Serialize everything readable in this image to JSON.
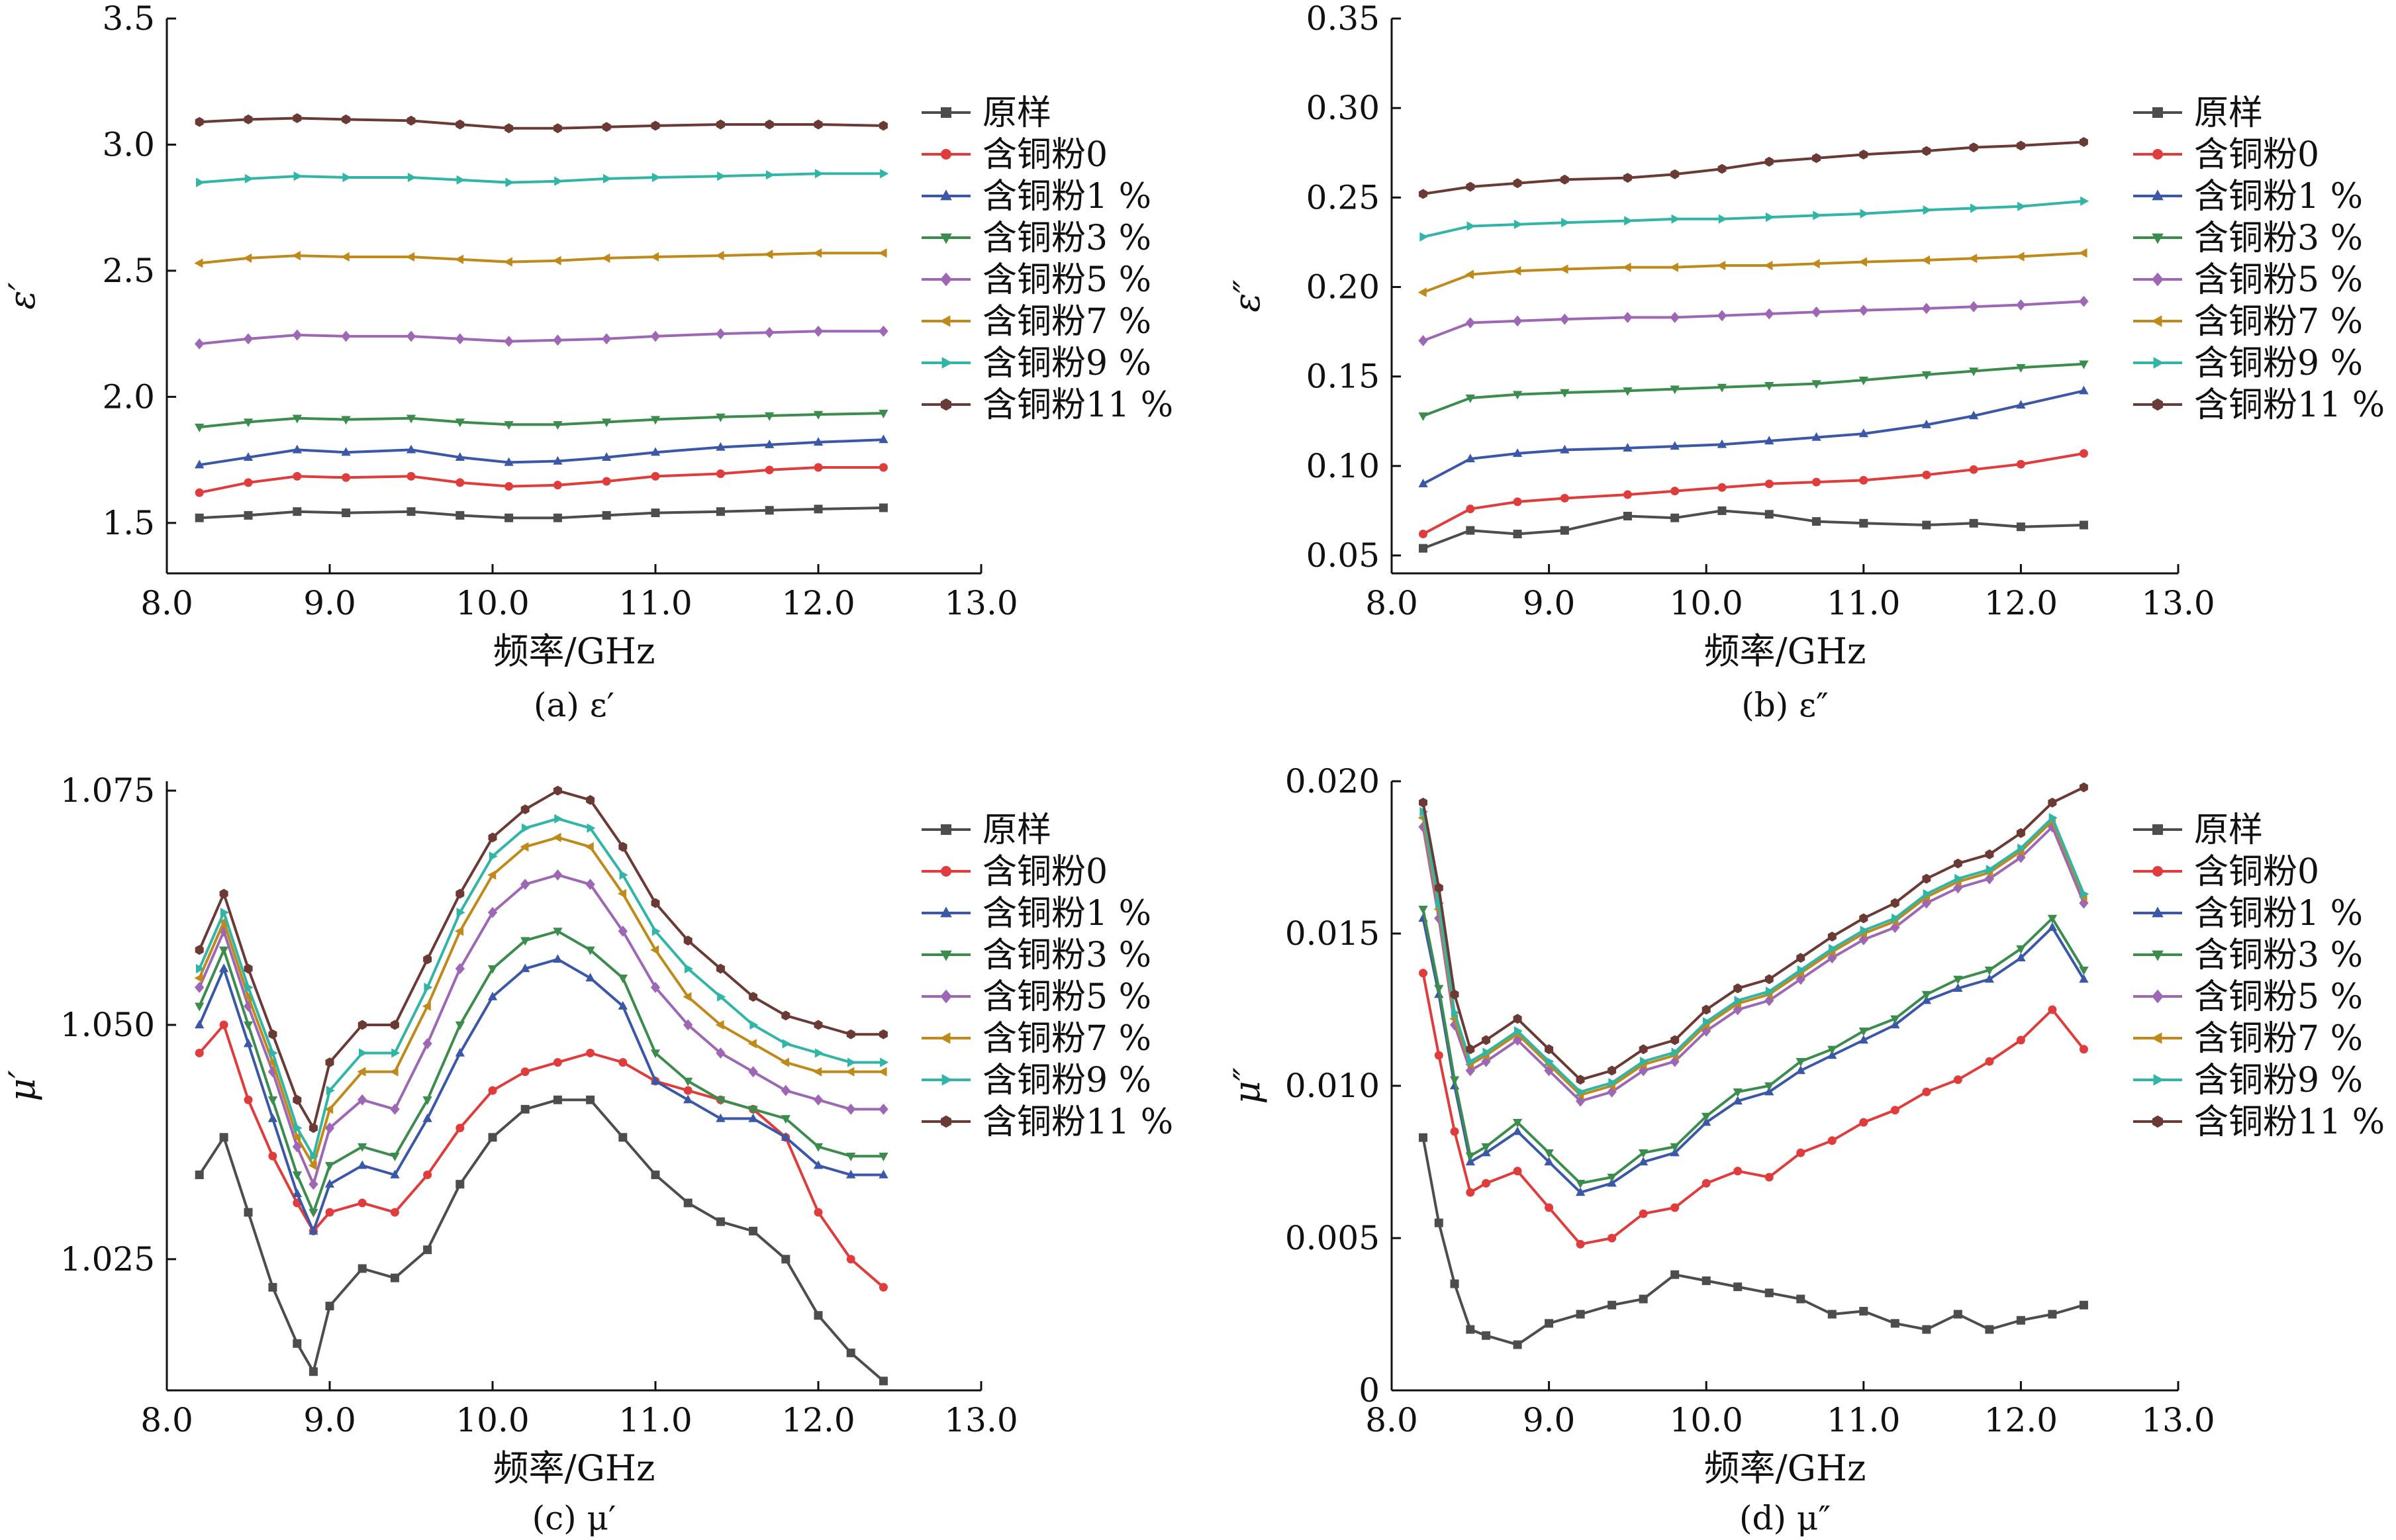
{
  "figure": {
    "panels": [
      {
        "caption": "(a) ε′"
      },
      {
        "caption": "(b) ε″"
      },
      {
        "caption": "(c) μ′"
      },
      {
        "caption": "(d) μ″"
      }
    ]
  },
  "legend": [
    "原样",
    "含铜粉0",
    "含铜粉1 %",
    "含铜粉3 %",
    "含铜粉5 %",
    "含铜粉7 %",
    "含铜粉9 %",
    "含铜粉11 %"
  ],
  "series_colors": [
    "#4d4d4d",
    "#e03c3c",
    "#3b58a8",
    "#3c8c4e",
    "#9d67b5",
    "#bf8a1a",
    "#30b5a6",
    "#6b3a34"
  ],
  "series_markers": [
    "square",
    "circle",
    "triangle-up",
    "triangle-down",
    "diamond",
    "triangle-left",
    "triangle-right",
    "hexagon"
  ],
  "chart_data": [
    {
      "type": "line",
      "xlabel": "频率/GHz",
      "ylabel": "ε′",
      "xlim": [
        8.0,
        13.0
      ],
      "ylim": [
        1.3,
        3.5
      ],
      "xticks": [
        "8.0",
        "9.0",
        "10.0",
        "11.0",
        "12.0",
        "13.0"
      ],
      "yticks": [
        "1.5",
        "2.0",
        "2.5",
        "3.0",
        "3.5"
      ],
      "x": [
        8.2,
        8.5,
        8.8,
        9.1,
        9.5,
        9.8,
        10.1,
        10.4,
        10.7,
        11.0,
        11.4,
        11.7,
        12.0,
        12.4
      ],
      "series": [
        {
          "name": "原样",
          "values": [
            1.52,
            1.53,
            1.545,
            1.54,
            1.545,
            1.53,
            1.52,
            1.52,
            1.53,
            1.54,
            1.545,
            1.55,
            1.555,
            1.56
          ]
        },
        {
          "name": "含铜粉0",
          "values": [
            1.62,
            1.66,
            1.685,
            1.68,
            1.685,
            1.66,
            1.645,
            1.65,
            1.665,
            1.685,
            1.695,
            1.71,
            1.72,
            1.72
          ]
        },
        {
          "name": "含铜粉1 %",
          "values": [
            1.73,
            1.76,
            1.79,
            1.78,
            1.79,
            1.76,
            1.74,
            1.745,
            1.76,
            1.78,
            1.8,
            1.81,
            1.82,
            1.83
          ]
        },
        {
          "name": "含铜粉3 %",
          "values": [
            1.88,
            1.9,
            1.915,
            1.91,
            1.915,
            1.9,
            1.89,
            1.89,
            1.9,
            1.91,
            1.92,
            1.925,
            1.93,
            1.935
          ]
        },
        {
          "name": "含铜粉5 %",
          "values": [
            2.21,
            2.23,
            2.245,
            2.24,
            2.24,
            2.23,
            2.22,
            2.225,
            2.23,
            2.24,
            2.25,
            2.255,
            2.26,
            2.26
          ]
        },
        {
          "name": "含铜粉7 %",
          "values": [
            2.53,
            2.55,
            2.56,
            2.555,
            2.555,
            2.545,
            2.535,
            2.54,
            2.55,
            2.555,
            2.56,
            2.565,
            2.57,
            2.57
          ]
        },
        {
          "name": "含铜粉9 %",
          "values": [
            2.85,
            2.865,
            2.875,
            2.87,
            2.87,
            2.86,
            2.85,
            2.855,
            2.865,
            2.87,
            2.875,
            2.88,
            2.885,
            2.885
          ]
        },
        {
          "name": "含铜粉11 %",
          "values": [
            3.09,
            3.1,
            3.105,
            3.1,
            3.095,
            3.08,
            3.065,
            3.065,
            3.07,
            3.075,
            3.08,
            3.08,
            3.08,
            3.075
          ]
        }
      ]
    },
    {
      "type": "line",
      "xlabel": "频率/GHz",
      "ylabel": "ε″",
      "xlim": [
        8.0,
        13.0
      ],
      "ylim": [
        0.04,
        0.35
      ],
      "xticks": [
        "8.0",
        "9.0",
        "10.0",
        "11.0",
        "12.0",
        "13.0"
      ],
      "yticks": [
        "0.05",
        "0.10",
        "0.15",
        "0.20",
        "0.25",
        "0.30",
        "0.35"
      ],
      "x": [
        8.2,
        8.5,
        8.8,
        9.1,
        9.5,
        9.8,
        10.1,
        10.4,
        10.7,
        11.0,
        11.4,
        11.7,
        12.0,
        12.4
      ],
      "series": [
        {
          "name": "原样",
          "values": [
            0.054,
            0.064,
            0.062,
            0.064,
            0.072,
            0.071,
            0.075,
            0.073,
            0.069,
            0.068,
            0.067,
            0.068,
            0.066,
            0.067
          ]
        },
        {
          "name": "含铜粉0",
          "values": [
            0.062,
            0.076,
            0.08,
            0.082,
            0.084,
            0.086,
            0.088,
            0.09,
            0.091,
            0.092,
            0.095,
            0.098,
            0.101,
            0.107
          ]
        },
        {
          "name": "含铜粉1 %",
          "values": [
            0.09,
            0.104,
            0.107,
            0.109,
            0.11,
            0.111,
            0.112,
            0.114,
            0.116,
            0.118,
            0.123,
            0.128,
            0.134,
            0.142
          ]
        },
        {
          "name": "含铜粉3 %",
          "values": [
            0.128,
            0.138,
            0.14,
            0.141,
            0.142,
            0.143,
            0.144,
            0.145,
            0.146,
            0.148,
            0.151,
            0.153,
            0.155,
            0.157
          ]
        },
        {
          "name": "含铜粉5 %",
          "values": [
            0.17,
            0.18,
            0.181,
            0.182,
            0.183,
            0.183,
            0.184,
            0.185,
            0.186,
            0.187,
            0.188,
            0.189,
            0.19,
            0.192
          ]
        },
        {
          "name": "含铜粉7 %",
          "values": [
            0.197,
            0.207,
            0.209,
            0.21,
            0.211,
            0.211,
            0.212,
            0.212,
            0.213,
            0.214,
            0.215,
            0.216,
            0.217,
            0.219
          ]
        },
        {
          "name": "含铜粉9 %",
          "values": [
            0.228,
            0.234,
            0.235,
            0.236,
            0.237,
            0.238,
            0.238,
            0.239,
            0.24,
            0.241,
            0.243,
            0.244,
            0.245,
            0.248
          ]
        },
        {
          "name": "含铜粉11 %",
          "values": [
            0.252,
            0.256,
            0.258,
            0.26,
            0.261,
            0.263,
            0.266,
            0.27,
            0.272,
            0.274,
            0.276,
            0.278,
            0.279,
            0.281
          ]
        }
      ]
    },
    {
      "type": "line",
      "xlabel": "频率/GHz",
      "ylabel": "μ′",
      "xlim": [
        8.0,
        13.0
      ],
      "ylim": [
        1.011,
        1.076
      ],
      "xticks": [
        "8.0",
        "9.0",
        "10.0",
        "11.0",
        "12.0",
        "13.0"
      ],
      "yticks": [
        "1.025",
        "1.050",
        "1.075"
      ],
      "x": [
        8.2,
        8.35,
        8.5,
        8.65,
        8.8,
        8.9,
        9.0,
        9.2,
        9.4,
        9.6,
        9.8,
        10.0,
        10.2,
        10.4,
        10.6,
        10.8,
        11.0,
        11.2,
        11.4,
        11.6,
        11.8,
        12.0,
        12.2,
        12.4
      ],
      "series": [
        {
          "name": "原样",
          "values": [
            1.034,
            1.038,
            1.03,
            1.022,
            1.016,
            1.013,
            1.02,
            1.024,
            1.023,
            1.026,
            1.033,
            1.038,
            1.041,
            1.042,
            1.042,
            1.038,
            1.034,
            1.031,
            1.029,
            1.028,
            1.025,
            1.019,
            1.015,
            1.012
          ]
        },
        {
          "name": "含铜粉0",
          "values": [
            1.047,
            1.05,
            1.042,
            1.036,
            1.031,
            1.028,
            1.03,
            1.031,
            1.03,
            1.034,
            1.039,
            1.043,
            1.045,
            1.046,
            1.047,
            1.046,
            1.044,
            1.043,
            1.042,
            1.041,
            1.038,
            1.03,
            1.025,
            1.022
          ]
        },
        {
          "name": "含铜粉1 %",
          "values": [
            1.05,
            1.056,
            1.048,
            1.04,
            1.032,
            1.028,
            1.033,
            1.035,
            1.034,
            1.04,
            1.047,
            1.053,
            1.056,
            1.057,
            1.055,
            1.052,
            1.044,
            1.042,
            1.04,
            1.04,
            1.038,
            1.035,
            1.034,
            1.034
          ]
        },
        {
          "name": "含铜粉3 %",
          "values": [
            1.052,
            1.058,
            1.05,
            1.042,
            1.034,
            1.03,
            1.035,
            1.037,
            1.036,
            1.042,
            1.05,
            1.056,
            1.059,
            1.06,
            1.058,
            1.055,
            1.047,
            1.044,
            1.042,
            1.041,
            1.04,
            1.037,
            1.036,
            1.036
          ]
        },
        {
          "name": "含铜粉5 %",
          "values": [
            1.054,
            1.06,
            1.052,
            1.045,
            1.037,
            1.033,
            1.039,
            1.042,
            1.041,
            1.048,
            1.056,
            1.062,
            1.065,
            1.066,
            1.065,
            1.06,
            1.054,
            1.05,
            1.047,
            1.045,
            1.043,
            1.042,
            1.041,
            1.041
          ]
        },
        {
          "name": "含铜粉7 %",
          "values": [
            1.055,
            1.061,
            1.053,
            1.046,
            1.038,
            1.035,
            1.041,
            1.045,
            1.045,
            1.052,
            1.06,
            1.066,
            1.069,
            1.07,
            1.069,
            1.064,
            1.058,
            1.053,
            1.05,
            1.048,
            1.046,
            1.045,
            1.045,
            1.045
          ]
        },
        {
          "name": "含铜粉9 %",
          "values": [
            1.056,
            1.062,
            1.054,
            1.047,
            1.039,
            1.036,
            1.043,
            1.047,
            1.047,
            1.054,
            1.062,
            1.068,
            1.071,
            1.072,
            1.071,
            1.066,
            1.06,
            1.056,
            1.053,
            1.05,
            1.048,
            1.047,
            1.046,
            1.046
          ]
        },
        {
          "name": "含铜粉11 %",
          "values": [
            1.058,
            1.064,
            1.056,
            1.049,
            1.042,
            1.039,
            1.046,
            1.05,
            1.05,
            1.057,
            1.064,
            1.07,
            1.073,
            1.075,
            1.074,
            1.069,
            1.063,
            1.059,
            1.056,
            1.053,
            1.051,
            1.05,
            1.049,
            1.049
          ]
        }
      ]
    },
    {
      "type": "line",
      "xlabel": "频率/GHz",
      "ylabel": "μ″",
      "xlim": [
        8.0,
        13.0
      ],
      "ylim": [
        0,
        0.02
      ],
      "xticks": [
        "8.0",
        "9.0",
        "10.0",
        "11.0",
        "12.0",
        "13.0"
      ],
      "yticks": [
        "0",
        "0.005",
        "0.010",
        "0.015",
        "0.020"
      ],
      "x": [
        8.2,
        8.3,
        8.4,
        8.5,
        8.6,
        8.8,
        9.0,
        9.2,
        9.4,
        9.6,
        9.8,
        10.0,
        10.2,
        10.4,
        10.6,
        10.8,
        11.0,
        11.2,
        11.4,
        11.6,
        11.8,
        12.0,
        12.2,
        12.4
      ],
      "series": [
        {
          "name": "原样",
          "values": [
            0.0083,
            0.0055,
            0.0035,
            0.002,
            0.0018,
            0.0015,
            0.0022,
            0.0025,
            0.0028,
            0.003,
            0.0038,
            0.0036,
            0.0034,
            0.0032,
            0.003,
            0.0025,
            0.0026,
            0.0022,
            0.002,
            0.0025,
            0.002,
            0.0023,
            0.0025,
            0.0028
          ]
        },
        {
          "name": "含铜粉0",
          "values": [
            0.0137,
            0.011,
            0.0085,
            0.0065,
            0.0068,
            0.0072,
            0.006,
            0.0048,
            0.005,
            0.0058,
            0.006,
            0.0068,
            0.0072,
            0.007,
            0.0078,
            0.0082,
            0.0088,
            0.0092,
            0.0098,
            0.0102,
            0.0108,
            0.0115,
            0.0125,
            0.0112
          ]
        },
        {
          "name": "含铜粉1 %",
          "values": [
            0.0155,
            0.013,
            0.01,
            0.0075,
            0.0078,
            0.0085,
            0.0075,
            0.0065,
            0.0068,
            0.0075,
            0.0078,
            0.0088,
            0.0095,
            0.0098,
            0.0105,
            0.011,
            0.0115,
            0.012,
            0.0128,
            0.0132,
            0.0135,
            0.0142,
            0.0152,
            0.0135
          ]
        },
        {
          "name": "含铜粉3 %",
          "values": [
            0.0158,
            0.0132,
            0.0102,
            0.0077,
            0.008,
            0.0088,
            0.0078,
            0.0068,
            0.007,
            0.0078,
            0.008,
            0.009,
            0.0098,
            0.01,
            0.0108,
            0.0112,
            0.0118,
            0.0122,
            0.013,
            0.0135,
            0.0138,
            0.0145,
            0.0155,
            0.0138
          ]
        },
        {
          "name": "含铜粉5 %",
          "values": [
            0.0185,
            0.0155,
            0.012,
            0.0105,
            0.0108,
            0.0115,
            0.0105,
            0.0095,
            0.0098,
            0.0105,
            0.0108,
            0.0118,
            0.0125,
            0.0128,
            0.0135,
            0.0142,
            0.0148,
            0.0152,
            0.016,
            0.0165,
            0.0168,
            0.0175,
            0.0185,
            0.016
          ]
        },
        {
          "name": "含铜粉7 %",
          "values": [
            0.0188,
            0.0158,
            0.0122,
            0.0107,
            0.011,
            0.0117,
            0.0107,
            0.0097,
            0.01,
            0.0107,
            0.011,
            0.012,
            0.0127,
            0.013,
            0.0137,
            0.0144,
            0.015,
            0.0154,
            0.0162,
            0.0167,
            0.017,
            0.0177,
            0.0187,
            0.0162
          ]
        },
        {
          "name": "含铜粉9 %",
          "values": [
            0.019,
            0.016,
            0.0124,
            0.0108,
            0.0111,
            0.0118,
            0.0108,
            0.0098,
            0.0101,
            0.0108,
            0.0111,
            0.0121,
            0.0128,
            0.0131,
            0.0138,
            0.0145,
            0.0151,
            0.0155,
            0.0163,
            0.0168,
            0.0171,
            0.0178,
            0.0188,
            0.0163
          ]
        },
        {
          "name": "含铜粉11 %",
          "values": [
            0.0193,
            0.0165,
            0.013,
            0.0112,
            0.0115,
            0.0122,
            0.0112,
            0.0102,
            0.0105,
            0.0112,
            0.0115,
            0.0125,
            0.0132,
            0.0135,
            0.0142,
            0.0149,
            0.0155,
            0.016,
            0.0168,
            0.0173,
            0.0176,
            0.0183,
            0.0193,
            0.0198
          ]
        }
      ]
    }
  ]
}
